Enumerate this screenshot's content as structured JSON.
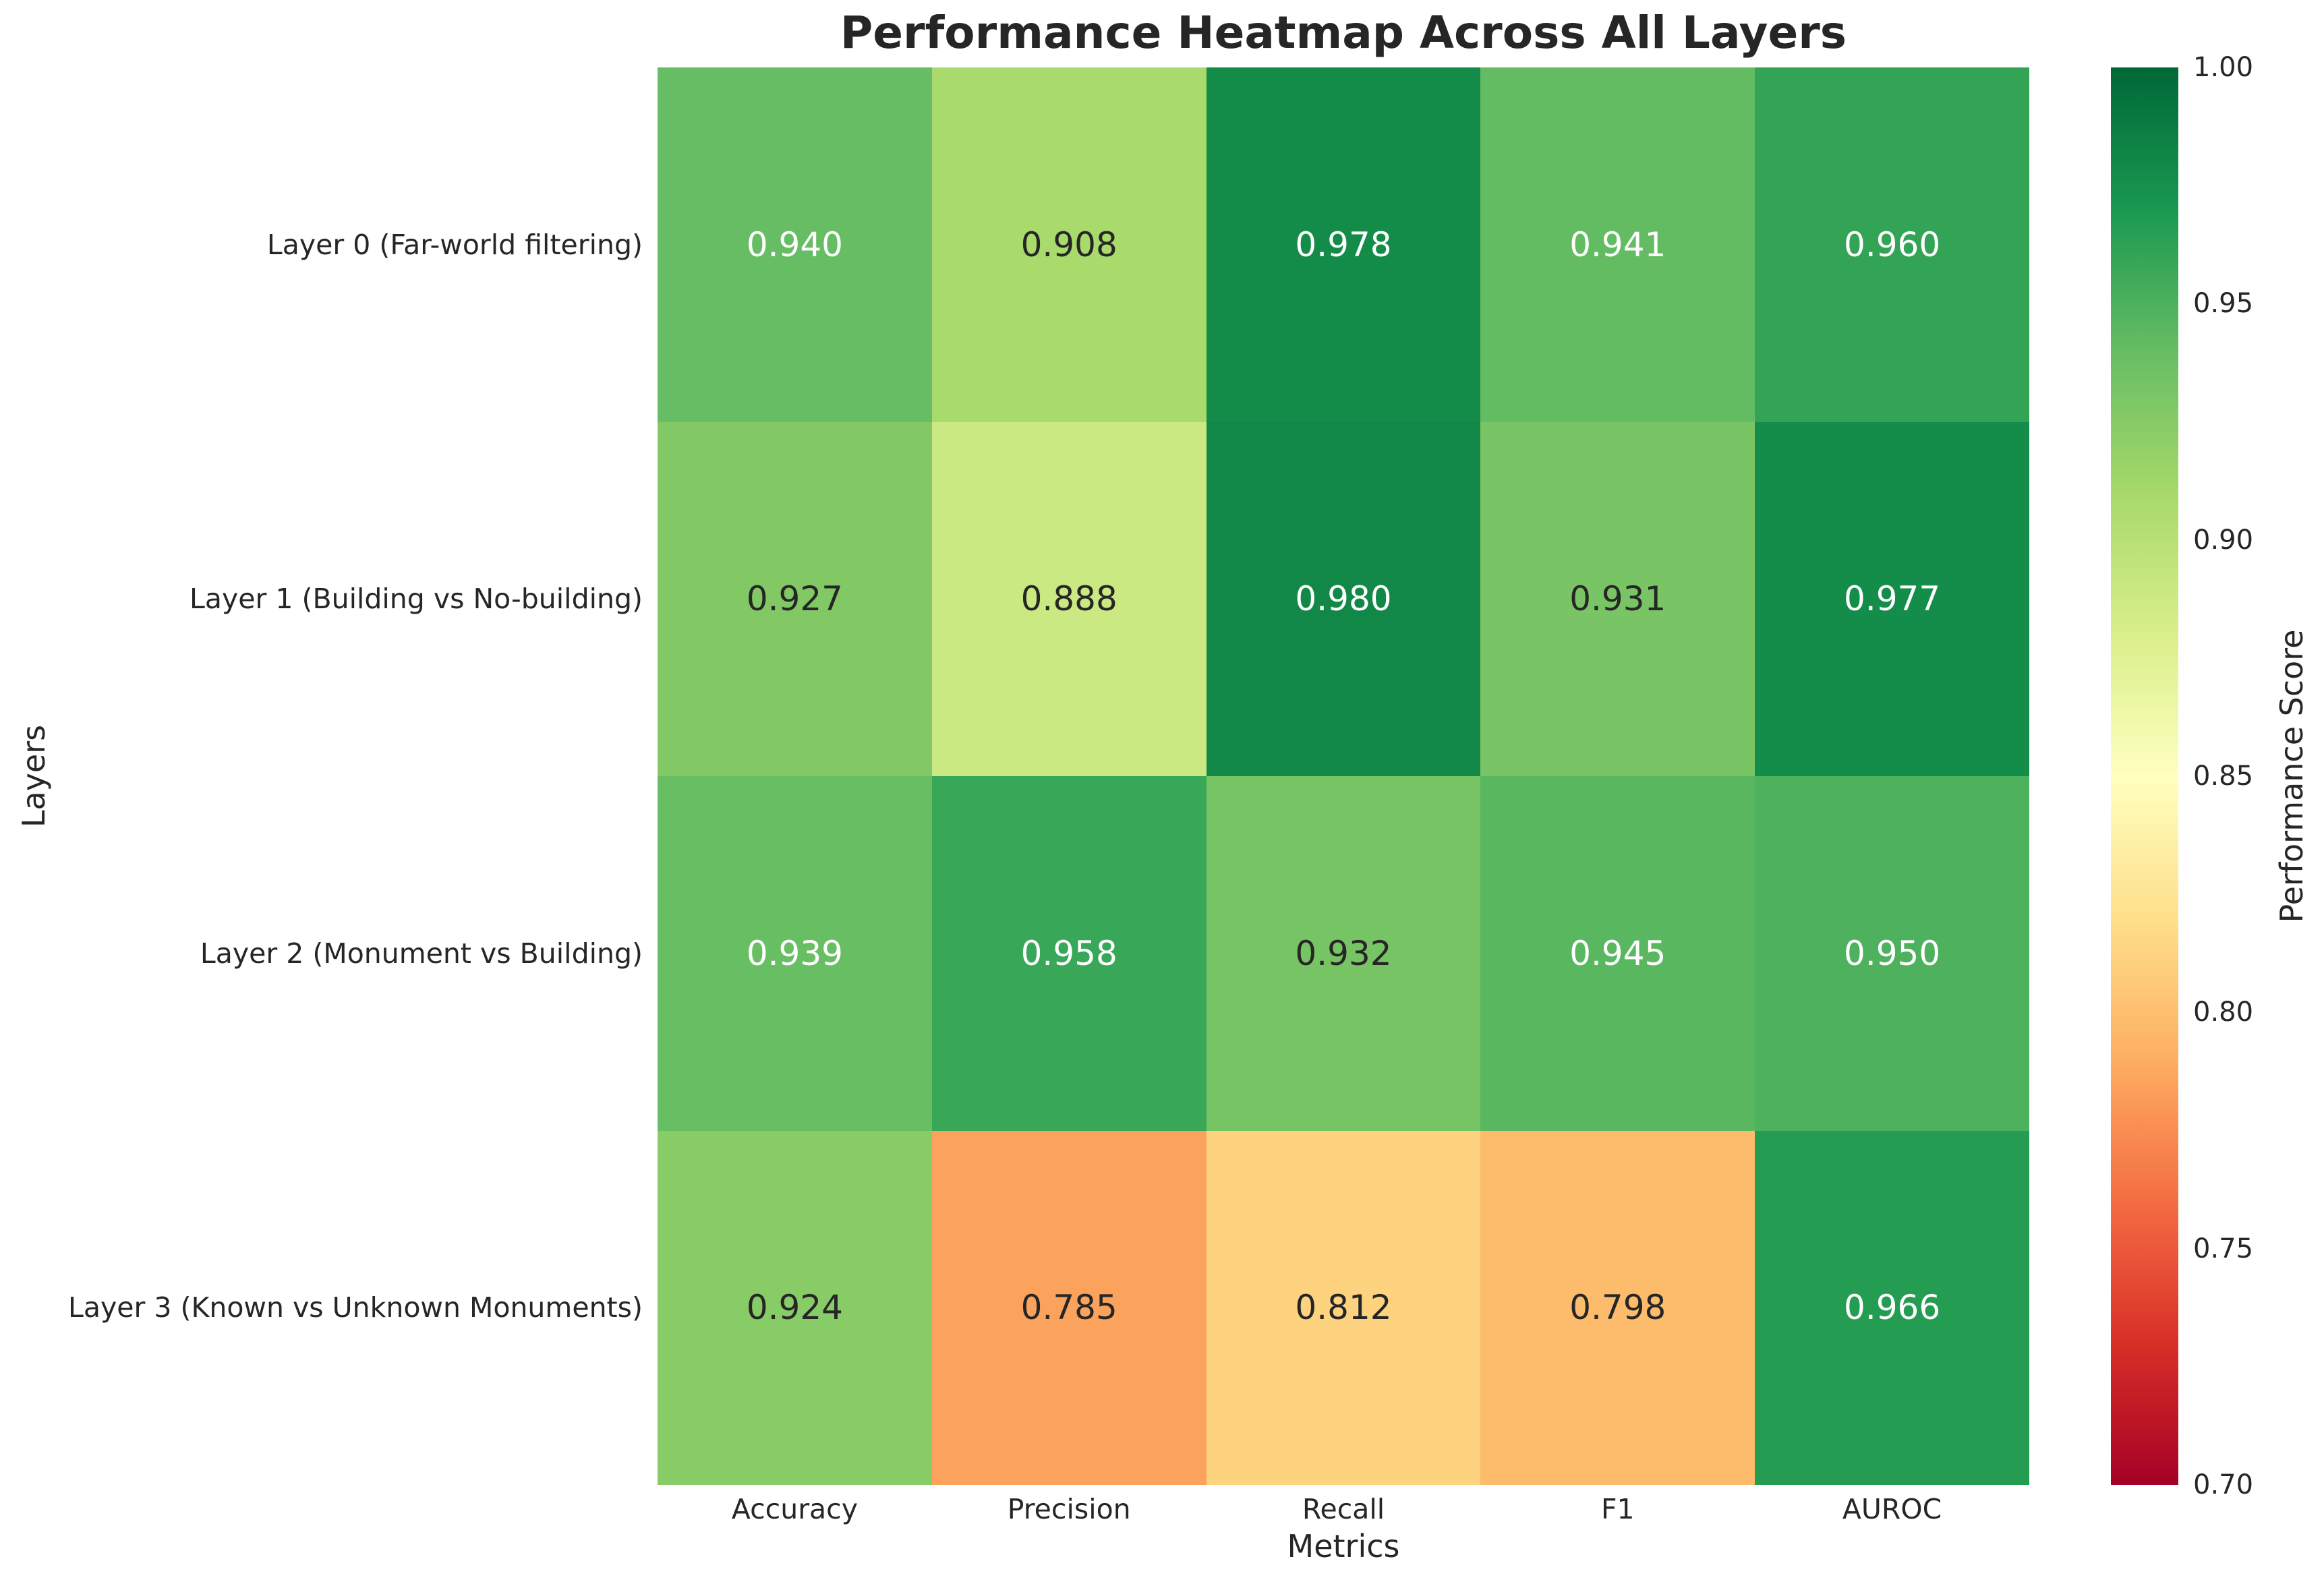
{
  "chart_data": {
    "type": "heatmap",
    "title": "Performance Heatmap Across All Layers",
    "xlabel": "Metrics",
    "ylabel": "Layers",
    "columns": [
      "Accuracy",
      "Precision",
      "Recall",
      "F1",
      "AUROC"
    ],
    "rows": [
      "Layer 0 (Far-world filtering)",
      "Layer 1 (Building vs No-building)",
      "Layer 2 (Monument vs Building)",
      "Layer 3 (Known vs Unknown Monuments)"
    ],
    "values": [
      [
        0.94,
        0.908,
        0.978,
        0.941,
        0.96
      ],
      [
        0.927,
        0.888,
        0.98,
        0.931,
        0.977
      ],
      [
        0.939,
        0.958,
        0.932,
        0.945,
        0.95
      ],
      [
        0.924,
        0.785,
        0.812,
        0.798,
        0.966
      ]
    ],
    "value_decimals": 3,
    "cell_colors": [
      [
        "#66bd63",
        "#a9da6c",
        "#138b49",
        "#63bc62",
        "#33a456"
      ],
      [
        "#82c966",
        "#cbe982",
        "#118848",
        "#79c565",
        "#148d4a"
      ],
      [
        "#68be63",
        "#38a758",
        "#77c465",
        "#59b760",
        "#4db15d"
      ],
      [
        "#88cc67",
        "#fba35c",
        "#fed380",
        "#fdbb6c",
        "#249d52"
      ]
    ],
    "text_colors": [
      [
        "#ffffff",
        "#262626",
        "#ffffff",
        "#ffffff",
        "#ffffff"
      ],
      [
        "#262626",
        "#262626",
        "#ffffff",
        "#262626",
        "#ffffff"
      ],
      [
        "#ffffff",
        "#ffffff",
        "#262626",
        "#ffffff",
        "#ffffff"
      ],
      [
        "#262626",
        "#262626",
        "#262626",
        "#262626",
        "#ffffff"
      ]
    ],
    "grid": false,
    "colorbar": {
      "label": "Performance Score",
      "min": 0.7,
      "max": 1.0,
      "tick_labels": [
        "1.00",
        "0.95",
        "0.90",
        "0.85",
        "0.80",
        "0.75",
        "0.70"
      ],
      "gradient_top_to_bottom": [
        "#006837",
        "#1a9850",
        "#66bd63",
        "#a6d96a",
        "#d9ef8b",
        "#ffffbf",
        "#fee08b",
        "#fdae61",
        "#f46d43",
        "#d73027",
        "#a50026"
      ]
    },
    "text_color": "#262626"
  }
}
